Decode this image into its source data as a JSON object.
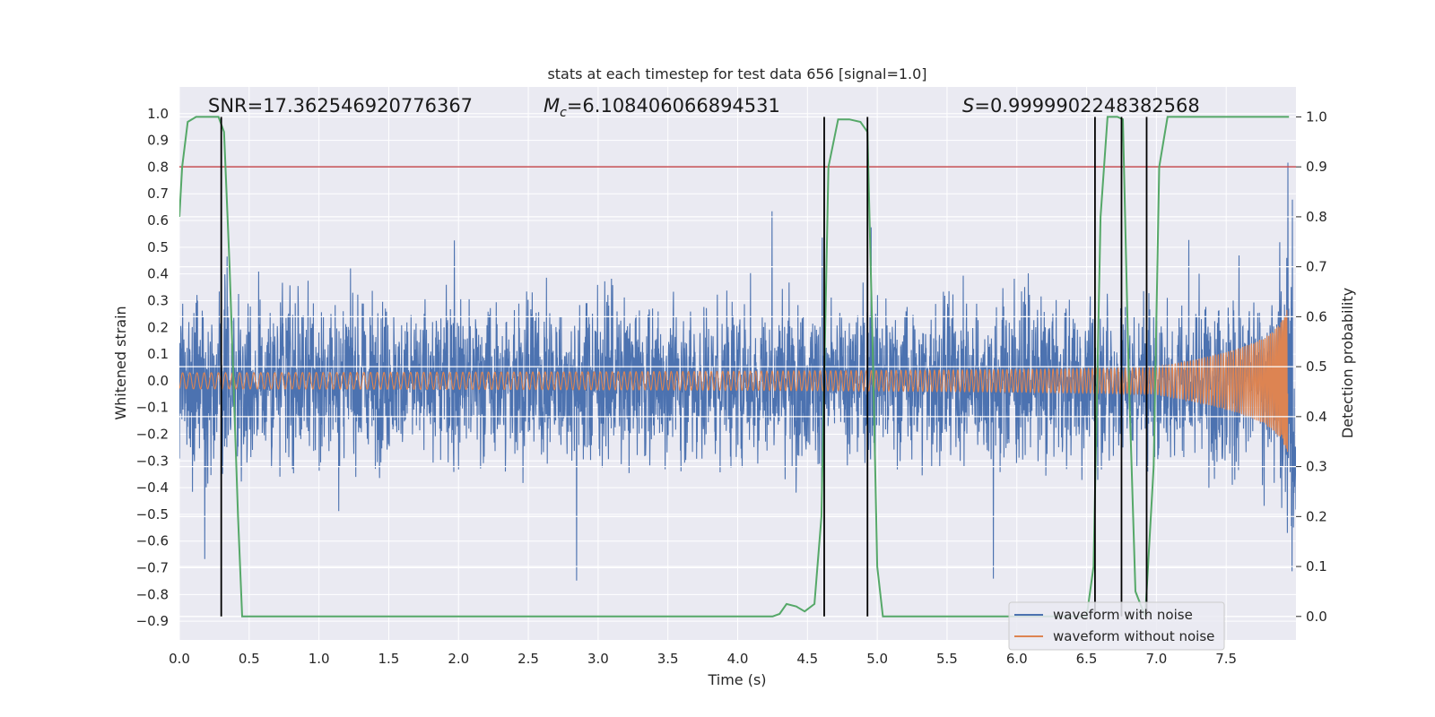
{
  "chart_data": {
    "type": "line",
    "title": "stats at each timestep for test data 656 [signal=1.0]",
    "xlabel": "Time (s)",
    "ylabel": "Whitened strain",
    "ylabel_right": "Detection probability",
    "xlim": [
      0,
      8
    ],
    "ylim": [
      -0.97,
      1.1
    ],
    "ylim_right": [
      -0.047,
      1.06
    ],
    "x_ticks": [
      "0.0",
      "0.5",
      "1.0",
      "1.5",
      "2.0",
      "2.5",
      "3.0",
      "3.5",
      "4.0",
      "4.5",
      "5.0",
      "5.5",
      "6.0",
      "6.5",
      "7.0",
      "7.5"
    ],
    "y_ticks": [
      "1.0",
      "0.9",
      "0.8",
      "0.7",
      "0.6",
      "0.5",
      "0.4",
      "0.3",
      "0.2",
      "0.1",
      "0.0",
      "-0.1",
      "-0.2",
      "-0.3",
      "-0.4",
      "-0.5",
      "-0.6",
      "-0.7",
      "-0.8",
      "-0.9"
    ],
    "y_ticks_right": [
      "1.0",
      "0.9",
      "0.8",
      "0.7",
      "0.6",
      "0.5",
      "0.4",
      "0.3",
      "0.2",
      "0.1",
      "0.0"
    ],
    "annotations": {
      "snr": "SNR=17.362546920776367",
      "mc_prefix": "M",
      "mc_sub": "c",
      "mc_value": "=6.108406066894531",
      "s_prefix": "S",
      "s_value": "=0.9999902248382568"
    },
    "threshold_right": 0.9,
    "detection_markers_x": [
      0.3,
      4.62,
      4.93,
      6.56,
      6.75,
      6.93
    ],
    "detection_probability": {
      "x": [
        0.0,
        0.02,
        0.06,
        0.12,
        0.2,
        0.28,
        0.32,
        0.36,
        0.42,
        0.45,
        0.5,
        1.0,
        2.0,
        3.0,
        4.0,
        4.25,
        4.3,
        4.35,
        4.42,
        4.48,
        4.55,
        4.6,
        4.65,
        4.72,
        4.8,
        4.88,
        4.93,
        4.97,
        5.0,
        5.04,
        5.07,
        5.5,
        6.0,
        6.4,
        6.5,
        6.55,
        6.6,
        6.65,
        6.72,
        6.76,
        6.8,
        6.85,
        6.92,
        6.98,
        7.02,
        7.08,
        7.5,
        7.95
      ],
      "y": [
        0.8,
        0.9,
        0.99,
        1.0,
        1.0,
        1.0,
        0.97,
        0.7,
        0.2,
        0.0,
        0.0,
        0.0,
        0.0,
        0.0,
        0.0,
        0.0,
        0.005,
        0.025,
        0.02,
        0.01,
        0.025,
        0.2,
        0.9,
        0.995,
        0.995,
        0.99,
        0.97,
        0.5,
        0.1,
        0.0,
        0.0,
        0.0,
        0.0,
        0.0,
        0.0,
        0.1,
        0.8,
        1.0,
        1.0,
        0.995,
        0.5,
        0.05,
        0.0,
        0.3,
        0.9,
        1.0,
        1.0,
        1.0
      ]
    },
    "noise_envelope_amplitude": 0.6,
    "chirp_amplitude_range": [
      0.03,
      0.45
    ],
    "series": [
      {
        "name": "waveform with noise",
        "color": "#4c72b0"
      },
      {
        "name": "waveform without noise",
        "color": "#dd8452"
      }
    ],
    "probability_color": "#55a868",
    "threshold_color": "#c44e52",
    "marker_color": "#000000",
    "legend_position": "lower right",
    "grid": true,
    "plot_background": "#eaeaf2"
  }
}
